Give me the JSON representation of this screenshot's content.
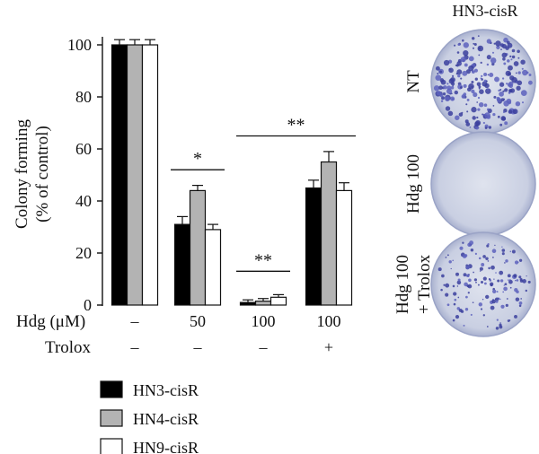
{
  "chart_data": {
    "type": "bar",
    "ylabel_line1": "Colony forming",
    "ylabel_line2": "(% of control)",
    "ylim": [
      0,
      100
    ],
    "yticks": [
      0,
      20,
      40,
      60,
      80,
      100
    ],
    "row_labels": {
      "hdg": "Hdg (μM)",
      "trolox": "Trolox"
    },
    "categories": [
      {
        "hdg": "–",
        "trolox": "–"
      },
      {
        "hdg": "50",
        "trolox": "–"
      },
      {
        "hdg": "100",
        "trolox": "–"
      },
      {
        "hdg": "100",
        "trolox": "+"
      }
    ],
    "series": [
      {
        "name": "HN3-cisR",
        "color": "#000000",
        "values": [
          100,
          31,
          1,
          45
        ],
        "errors": [
          2,
          3,
          1,
          3
        ]
      },
      {
        "name": "HN4-cisR",
        "color": "#b3b3b3",
        "values": [
          100,
          44,
          1.5,
          55
        ],
        "errors": [
          2,
          2,
          1,
          4
        ]
      },
      {
        "name": "HN9-cisR",
        "color": "#ffffff",
        "values": [
          100,
          29,
          3,
          44
        ],
        "errors": [
          2,
          2,
          1,
          3
        ]
      }
    ],
    "significance": [
      {
        "label": "*",
        "from": 1,
        "to": 1,
        "y": 52
      },
      {
        "label": "**",
        "from": 2,
        "to": 2,
        "y": 13
      },
      {
        "label": "**",
        "from": 2,
        "to": 3,
        "y": 65
      }
    ],
    "legend_placement": "bottom-left"
  },
  "panel": {
    "title": "HN3-cisR",
    "dishes": [
      {
        "label_lines": [
          "NT"
        ],
        "density": "high"
      },
      {
        "label_lines": [
          "Hdg 100"
        ],
        "density": "none"
      },
      {
        "label_lines": [
          "Hdg 100",
          "+ Trolox"
        ],
        "density": "medium"
      }
    ]
  }
}
